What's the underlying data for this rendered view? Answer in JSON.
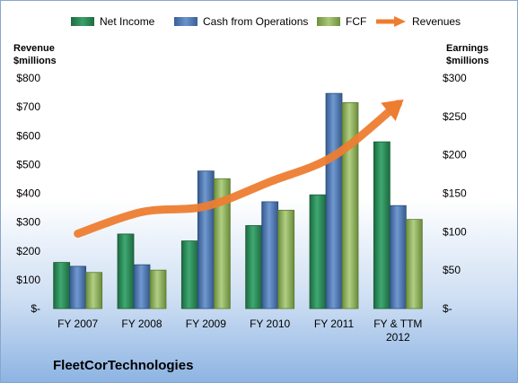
{
  "company": "FleetCorTechnologies",
  "colors": {
    "net_income": "#2e8b57",
    "cash_from_operations": "#4f7fbf",
    "fcf": "#8fb35a",
    "revenues": "#ed7d31"
  },
  "chart_data": {
    "type": "bar",
    "categories": [
      "FY 2007",
      "FY 2008",
      "FY 2009",
      "FY 2010",
      "FY 2011",
      "FY & TTM 2012"
    ],
    "series": [
      {
        "name": "Net Income",
        "axis": "right",
        "values": [
          60,
          97,
          88,
          108,
          148,
          217
        ]
      },
      {
        "name": "Cash from Operations",
        "axis": "right",
        "values": [
          55,
          57,
          179,
          139,
          280,
          134
        ]
      },
      {
        "name": "FCF",
        "axis": "right",
        "values": [
          47,
          50,
          169,
          128,
          268,
          116
        ]
      },
      {
        "name": "Revenues",
        "axis": "left",
        "type": "line",
        "values": [
          260,
          335,
          355,
          440,
          530,
          710
        ]
      }
    ],
    "ylabel_left": "Revenue $millions",
    "ylabel_right": "Earnings $millions",
    "ylim_left": [
      0,
      800
    ],
    "ylim_right": [
      0,
      300
    ],
    "left_ticks": [
      "$-",
      "$100",
      "$200",
      "$300",
      "$400",
      "$500",
      "$600",
      "$700",
      "$800"
    ],
    "right_ticks": [
      "$-",
      "$50",
      "$100",
      "$150",
      "$200",
      "$250",
      "$300"
    ],
    "legend": [
      "Net Income",
      "Cash from Operations",
      "FCF",
      "Revenues"
    ],
    "legend_position": "top",
    "grid": false
  }
}
